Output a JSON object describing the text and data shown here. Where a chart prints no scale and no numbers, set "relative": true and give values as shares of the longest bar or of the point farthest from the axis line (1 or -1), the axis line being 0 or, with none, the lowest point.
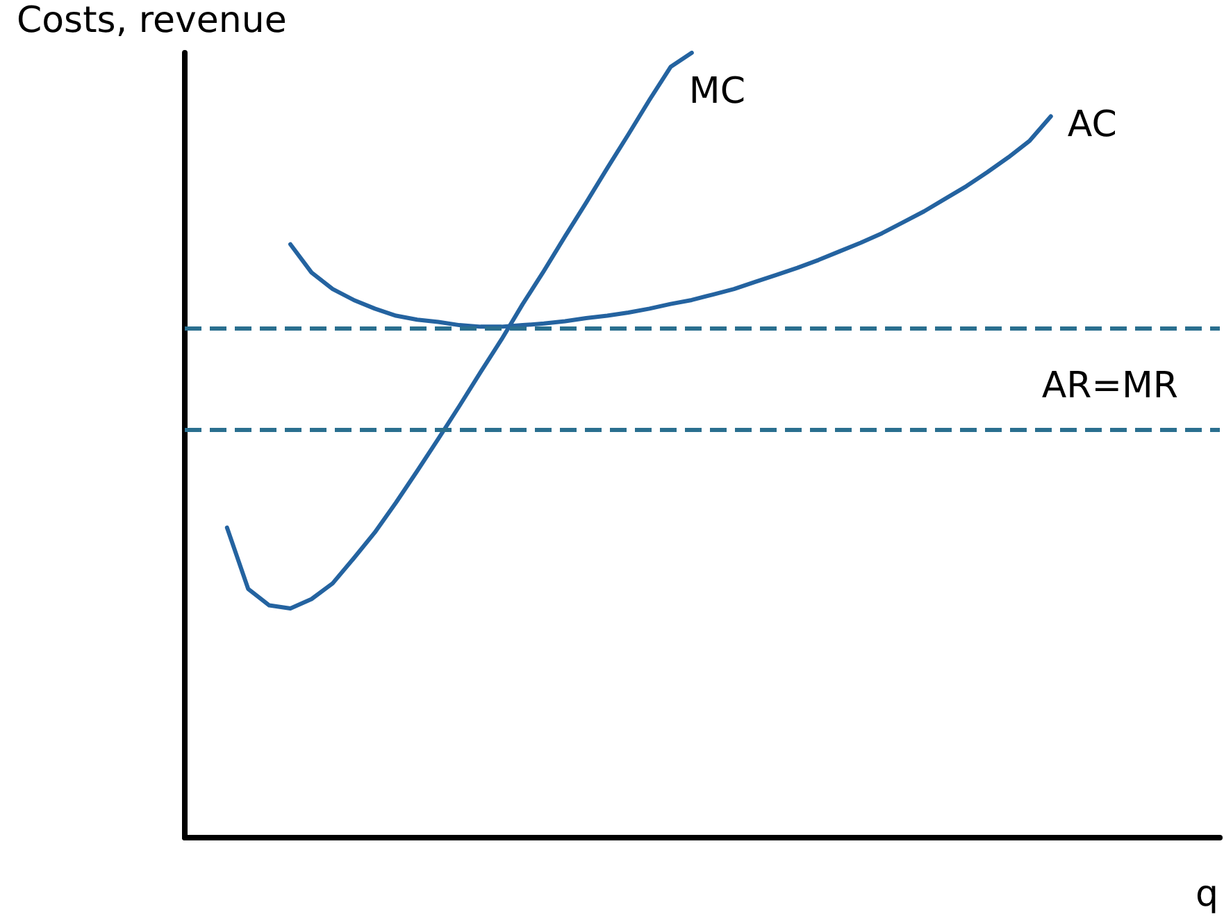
{
  "chart_data": {
    "type": "line",
    "relative": true,
    "xlabel": "q",
    "ylabel": "Costs, revenue",
    "grid": false,
    "legend": false,
    "marker": "none",
    "line_style": "solid",
    "categories": [
      null,
      null,
      null,
      null,
      null,
      null,
      null,
      null,
      null,
      null,
      null,
      null,
      null,
      null,
      null,
      null,
      null,
      null,
      null,
      null,
      null,
      null,
      null,
      null,
      null,
      null,
      null,
      null,
      null,
      null,
      null,
      null,
      null,
      null,
      null,
      null,
      null,
      null,
      null,
      null,
      null,
      null,
      null,
      null,
      null,
      null,
      null,
      null,
      null,
      null
    ],
    "series": [
      {
        "name": "MC",
        "color": "#2463a0",
        "values": [
          null,
          null,
          0.395,
          0.317,
          0.296,
          0.292,
          0.304,
          0.324,
          0.356,
          0.389,
          0.427,
          0.467,
          0.508,
          0.55,
          0.593,
          0.635,
          0.68,
          0.722,
          0.766,
          0.809,
          0.853,
          0.896,
          0.94,
          0.982,
          1.0,
          null,
          null,
          null,
          null,
          null,
          null,
          null,
          null,
          null,
          null,
          null,
          null,
          null,
          null,
          null,
          null,
          null,
          null,
          null,
          null,
          null,
          null,
          null,
          null,
          null
        ]
      },
      {
        "name": "AC",
        "color": "#2463a0",
        "values": [
          null,
          null,
          null,
          null,
          null,
          0.756,
          0.72,
          0.699,
          0.685,
          0.674,
          0.665,
          0.66,
          0.657,
          0.653,
          0.651,
          0.651,
          0.653,
          0.655,
          0.658,
          0.662,
          0.665,
          0.669,
          0.674,
          0.68,
          0.685,
          0.692,
          0.699,
          0.708,
          0.717,
          0.726,
          0.736,
          0.747,
          0.758,
          0.77,
          0.784,
          0.798,
          0.814,
          0.83,
          0.848,
          0.867,
          0.888,
          0.919,
          null,
          null,
          null,
          null,
          null,
          null,
          null,
          null
        ]
      }
    ],
    "ref_lines": [
      {
        "axis": "y",
        "value": 0.65,
        "label": null,
        "color": "#2a6f8f",
        "line_style": "dashed"
      },
      {
        "axis": "y",
        "value": 0.517,
        "label": "AR=MR",
        "color": "#2a6f8f",
        "line_style": "dashed"
      }
    ]
  }
}
